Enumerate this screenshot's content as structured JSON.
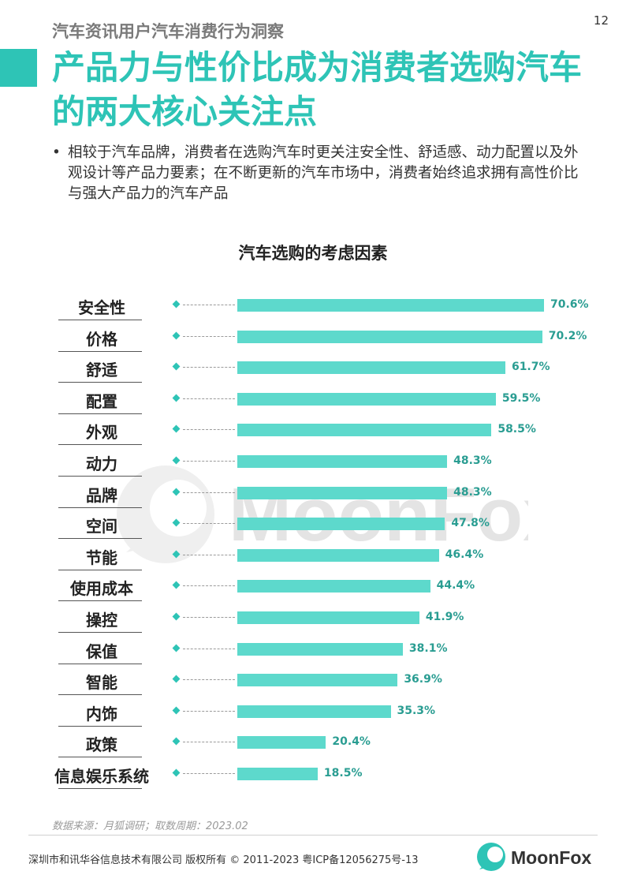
{
  "page": {
    "number": "12"
  },
  "header": {
    "subtitle": "汽车资讯用户汽车消费行为洞察",
    "title": "产品力与性价比成为消费者选购汽车的两大核心关注点"
  },
  "summary": {
    "bullet": "•",
    "text": "相较于汽车品牌，消费者在选购汽车时更关注安全性、舒适感、动力配置以及外观设计等产品力要素；在不断更新的汽车市场中，消费者始终追求拥有高性价比与强大产品力的汽车产品"
  },
  "chart_data": {
    "type": "bar",
    "orientation": "horizontal",
    "title": "汽车选购的考虑因素",
    "categories": [
      "安全性",
      "价格",
      "舒适",
      "配置",
      "外观",
      "动力",
      "品牌",
      "空间",
      "节能",
      "使用成本",
      "操控",
      "保值",
      "智能",
      "内饰",
      "政策",
      "信息娱乐系统"
    ],
    "values": [
      70.6,
      70.2,
      61.7,
      59.5,
      58.5,
      48.3,
      48.3,
      47.8,
      46.4,
      44.4,
      41.9,
      38.1,
      36.9,
      35.3,
      20.4,
      18.5
    ],
    "value_labels": [
      "70.6%",
      "70.2%",
      "61.7%",
      "59.5%",
      "58.5%",
      "48.3%",
      "48.3%",
      "47.8%",
      "46.4%",
      "44.4%",
      "41.9%",
      "38.1%",
      "36.9%",
      "35.3%",
      "20.4%",
      "18.5%"
    ],
    "unit": "%",
    "xlim": [
      0,
      70.6
    ],
    "bar_color": "#5dd9cc",
    "label_color": "#2a9d92",
    "grid": false,
    "legend": "none"
  },
  "watermark": {
    "text": "MoonFox"
  },
  "source": "数据来源：月狐调研；取数周期：2023.02",
  "footer": {
    "copyright": "深圳市和讯华谷信息技术有限公司 版权所有 © 2011-2023 粤ICP备12056275号-13",
    "logo_text": "MoonFox"
  },
  "colors": {
    "accent": "#2ec4b6",
    "bar": "#5dd9cc",
    "value_text": "#2a9d92"
  }
}
